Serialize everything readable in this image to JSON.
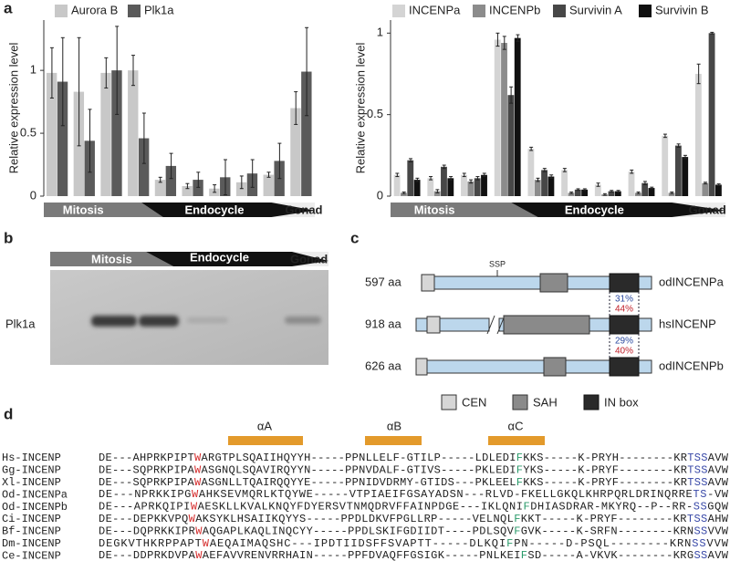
{
  "chart_data": [
    {
      "type": "bar",
      "ylabel": "Relative expression level",
      "categories": [
        null,
        null,
        null,
        null,
        null,
        null,
        null,
        null,
        null,
        null
      ],
      "stages": [
        "Mitosis",
        "Endocycle",
        "Gonad"
      ],
      "series": [
        {
          "name": "Aurora B",
          "color": "#c8c8c8",
          "values": [
            0.98,
            0.83,
            0.98,
            1.0,
            0.13,
            0.08,
            0.06,
            0.11,
            0.17,
            0.7
          ],
          "errors": [
            0.2,
            0.43,
            0.12,
            0.12,
            0.02,
            0.02,
            0.03,
            0.05,
            0.02,
            0.13
          ]
        },
        {
          "name": "Plk1a",
          "color": "#5a5a5a",
          "values": [
            0.91,
            0.44,
            1.0,
            0.46,
            0.24,
            0.13,
            0.15,
            0.18,
            0.28,
            0.99
          ],
          "errors": [
            0.35,
            0.25,
            0.35,
            0.2,
            0.1,
            0.06,
            0.14,
            0.11,
            0.14,
            0.35
          ]
        }
      ],
      "ylim": [
        0,
        1.4
      ],
      "yticks": [
        0,
        0.5,
        1
      ]
    },
    {
      "type": "bar",
      "ylabel": "Relative expression level",
      "categories": [
        null,
        null,
        null,
        null,
        null,
        null,
        null,
        null,
        null,
        null
      ],
      "stages": [
        "Mitosis",
        "Endocycle",
        "Gonad"
      ],
      "series": [
        {
          "name": "INCENPa",
          "color": "#d4d4d4",
          "values": [
            0.13,
            0.11,
            0.13,
            0.96,
            0.29,
            0.16,
            0.07,
            0.15,
            0.37,
            0.75
          ],
          "errors": [
            0.01,
            0.01,
            0.01,
            0.04,
            0.01,
            0.01,
            0.01,
            0.01,
            0.01,
            0.06
          ]
        },
        {
          "name": "INCENPb",
          "color": "#8c8c8c",
          "values": [
            0.02,
            0.03,
            0.09,
            0.94,
            0.1,
            0.02,
            0.01,
            0.02,
            0.02,
            0.08
          ],
          "errors": [
            0.005,
            0.01,
            0.01,
            0.04,
            0.01,
            0.005,
            0.005,
            0.005,
            0.005,
            0.005
          ]
        },
        {
          "name": "Survivin A",
          "color": "#474747",
          "values": [
            0.22,
            0.18,
            0.11,
            0.62,
            0.16,
            0.04,
            0.03,
            0.08,
            0.31,
            1.0
          ],
          "errors": [
            0.01,
            0.01,
            0.01,
            0.05,
            0.01,
            0.005,
            0.005,
            0.01,
            0.01,
            0.005
          ]
        },
        {
          "name": "Survivin B",
          "color": "#111111",
          "values": [
            0.1,
            0.11,
            0.13,
            0.97,
            0.12,
            0.04,
            0.03,
            0.05,
            0.24,
            0.07
          ],
          "errors": [
            0.01,
            0.01,
            0.01,
            0.02,
            0.01,
            0.005,
            0.005,
            0.005,
            0.01,
            0.005
          ]
        }
      ],
      "ylim": [
        0,
        1.08
      ],
      "yticks": [
        0,
        0.5,
        1
      ]
    }
  ],
  "panel_labels": [
    "a",
    "b",
    "c",
    "d"
  ],
  "blot": {
    "stages": [
      "Mitosis",
      "Endocycle",
      "Gonad"
    ],
    "protein": "Plk1a"
  },
  "domains": {
    "proteins": [
      {
        "length": "597 aa",
        "name": "odINCENPa"
      },
      {
        "length": "918 aa",
        "name": "hsINCENP"
      },
      {
        "length": "626 aa",
        "name": "odINCENPb"
      }
    ],
    "site": "SSP",
    "identities": [
      {
        "identity": "31%",
        "similarity": "44%"
      },
      {
        "identity": "29%",
        "similarity": "40%"
      }
    ],
    "legend": [
      "CEN",
      "SAH",
      "IN box"
    ]
  },
  "alignment": {
    "helices": [
      "αA",
      "αB",
      "αC"
    ],
    "rows": [
      {
        "name": "Hs-INCENP",
        "sequence": "DE---AHPRKPIPTWARGTPLSQAIIHQYYH-----PPNLLELF-GTILP-----LDLEDIFKKS-----K-PRYH--------KRTSSAVW"
      },
      {
        "name": "Gg-INCENP",
        "sequence": "DE---SQPRKPIPAWASGNQLSQAVIRQYYN-----PPNVDALF-GTIVS-----PKLEDIFYKS-----K-PRYF--------KRTSSAVW"
      },
      {
        "name": "Xl-INCENP",
        "sequence": "DE---SQPRKPIPAWASGNLLTQAIRQQYYE-----PPNIDVDRMY-GTIDS---PKLEELFKKS-----K-PRYF--------KRTSSAVW"
      },
      {
        "name": "Od-INCENPa",
        "sequence": "DE---NPRKKIPGWAHKSEVMQRLKTQYWE-----VTPIAEIFGSAYADSN---RLVD-FKELLGKQLKHRPQRLDRINQRRETS-VW"
      },
      {
        "name": "Od-INCENPb",
        "sequence": "DE---APRKQIPIWAESKLLKVALKNQYFDYERSVTNMQDRVFFAINPDGE---IKLQNIFDHIASDRAR-MKYRQ--P--RR-SSGQW"
      },
      {
        "name": "Ci-INCENP",
        "sequence": "DE---DEPKKVPQWAKSYKLHSAIIKQYYS-----PPDLDKVFPGLLRP-----VELNQLFKKT-----K-PRYF--------KRTSSAHW"
      },
      {
        "name": "Bf-INCENP",
        "sequence": "DE---DQPRKKIPRWAQGAPLKAQLINQCYY-----PPDLSKIFGDIIDT----PDLSQVFGVK-----K-SRFN--------KRNSSVVW"
      },
      {
        "name": "Dm-INCENP",
        "sequence": "DEGKVTHKRPPAPTWAEQAIMAQSHC---IPDTIIDSFFSVAPTT-----DLKQIFPN-----D-PSQL--------KRNSSVVW"
      },
      {
        "name": "Ce-INCENP",
        "sequence": "DE---DDPRKDVPAWAEFAVVRENVRRHAIN-----PPFDVAQFFGSIGK-----PNLKEIFSD-----A-VKVK--------KRGSSAVW"
      }
    ]
  }
}
